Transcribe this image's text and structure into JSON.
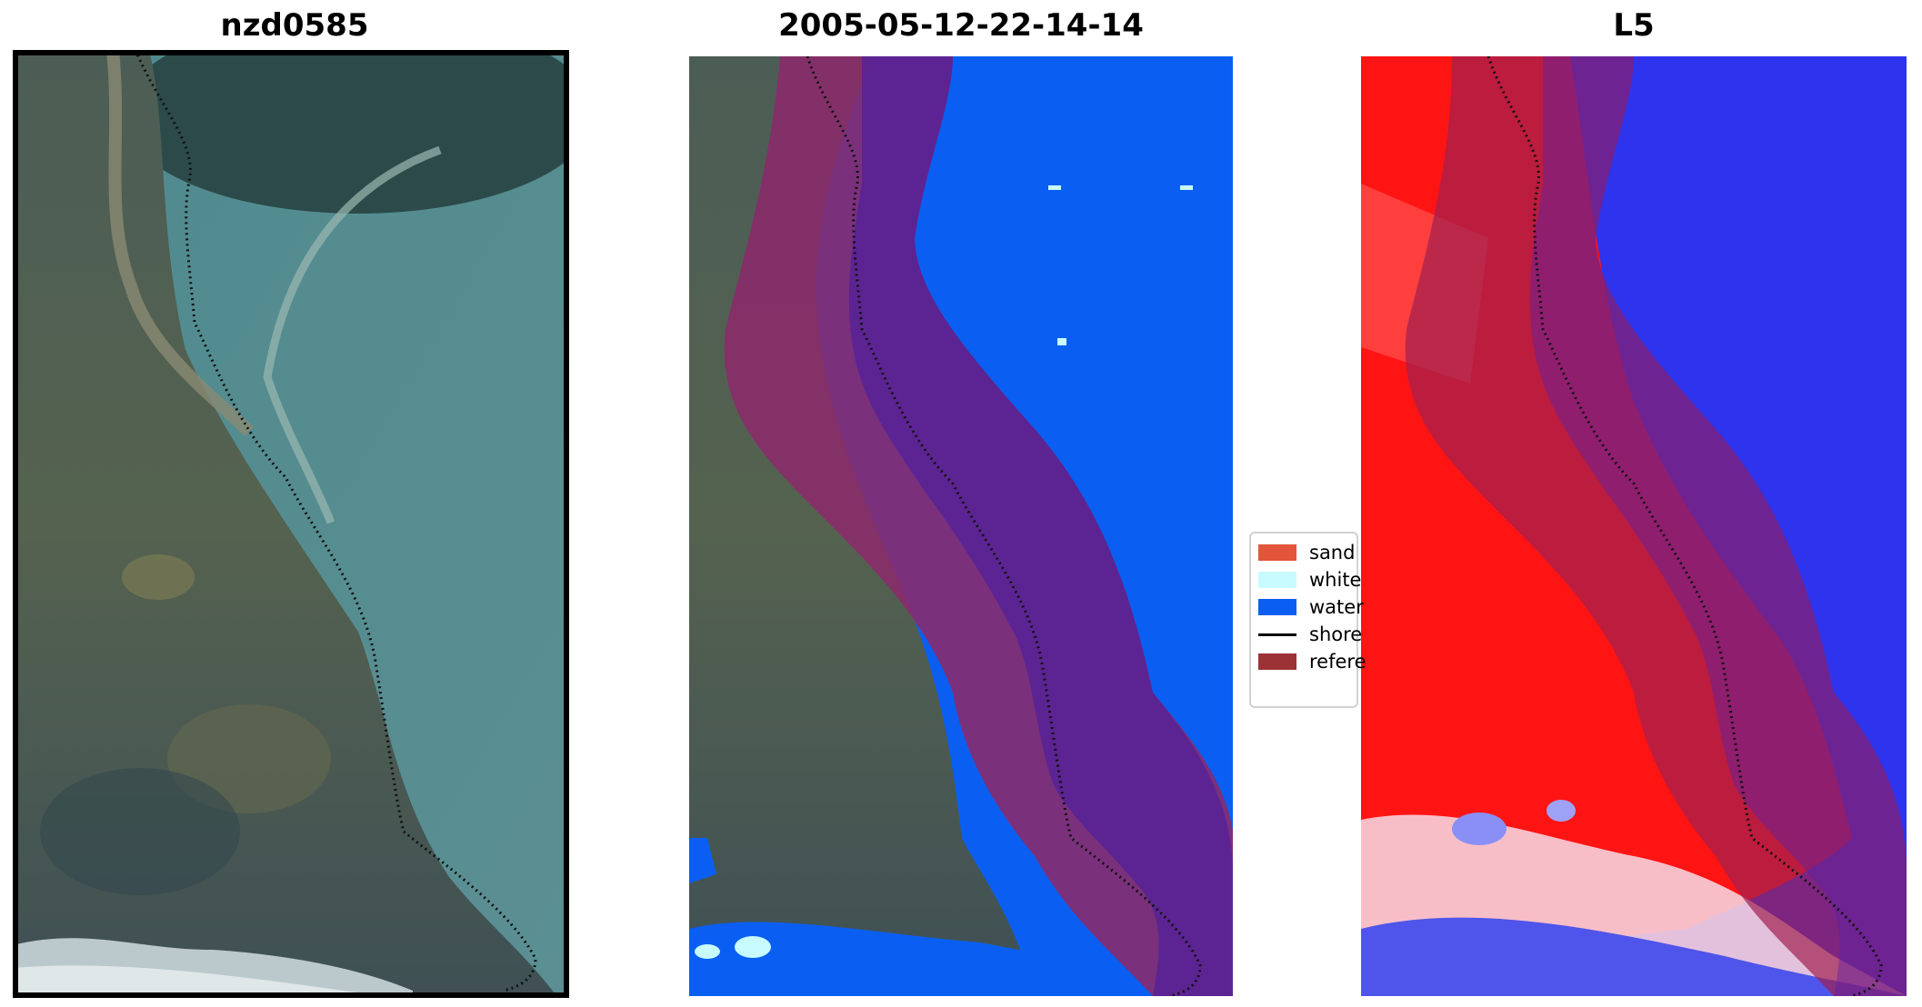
{
  "panels": [
    {
      "title": "nzd0585"
    },
    {
      "title": "2005-05-12-22-14-14"
    },
    {
      "title": "L5"
    }
  ],
  "legend": {
    "items": [
      {
        "label": "sand",
        "color": "#e2553b",
        "kind": "patch"
      },
      {
        "label": "white",
        "color": "#c8fbff",
        "kind": "patch"
      },
      {
        "label": "water",
        "color": "#0a5ff2",
        "kind": "patch"
      },
      {
        "label": "shore",
        "color": "#000000",
        "kind": "line"
      },
      {
        "label": "refere",
        "color": "#9c3235",
        "kind": "patch"
      }
    ]
  },
  "colors": {
    "water_class": "#0a5ff2",
    "reference_buffer": "#8b2a6b",
    "buffer_on_water": "#51209a",
    "land_heat": "#ff1010",
    "water_heat": "#2a2ef0"
  }
}
